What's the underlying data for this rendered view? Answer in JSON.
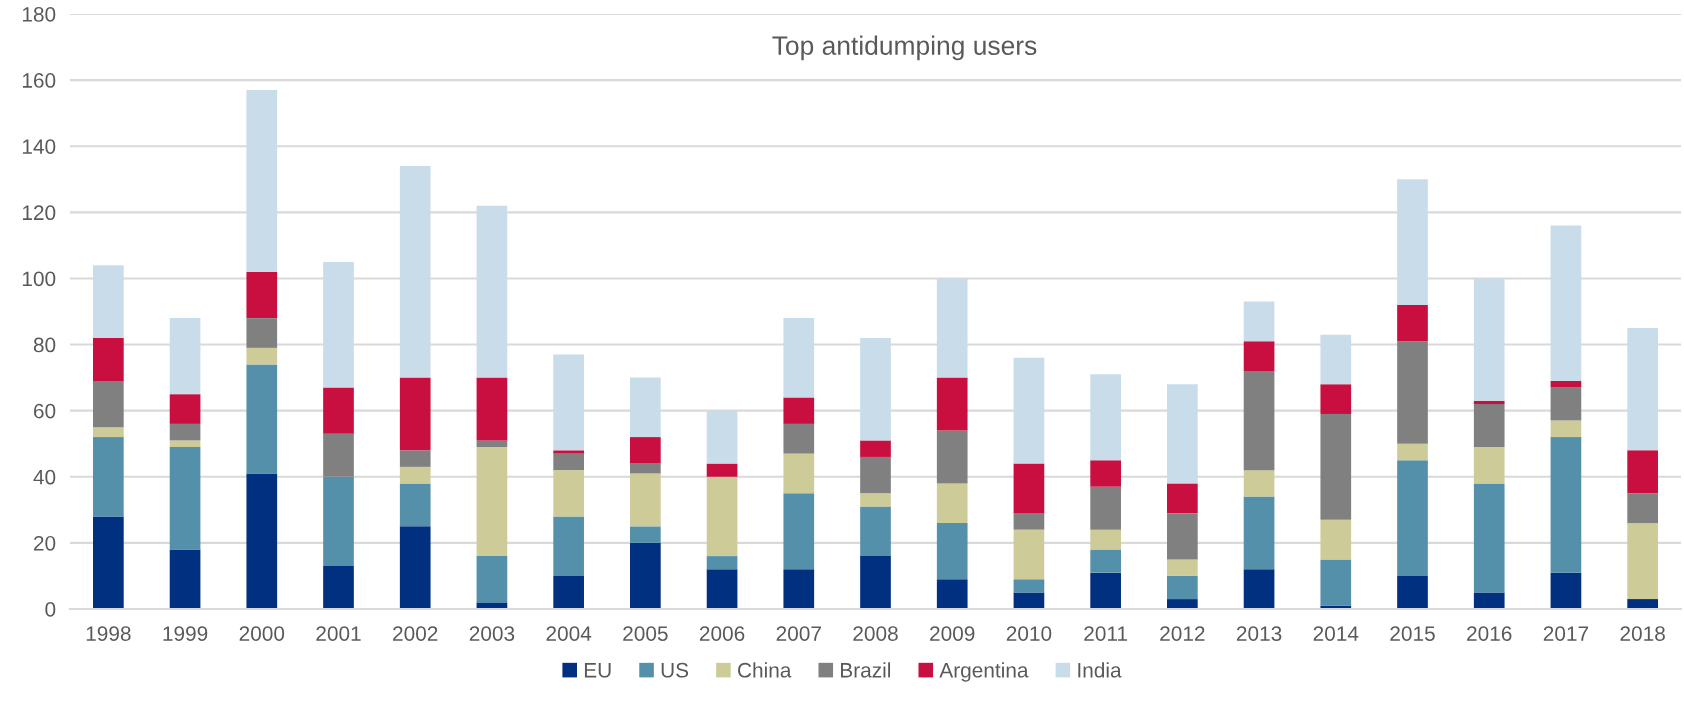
{
  "chart_data": {
    "type": "bar",
    "stacked": true,
    "title": "Top antidumping users",
    "categories": [
      "1998",
      "1999",
      "2000",
      "2001",
      "2002",
      "2003",
      "2004",
      "2005",
      "2006",
      "2007",
      "2008",
      "2009",
      "2010",
      "2011",
      "2012",
      "2013",
      "2014",
      "2015",
      "2016",
      "2017",
      "2018"
    ],
    "series": [
      {
        "name": "EU",
        "color": "#00307f",
        "values": [
          28,
          18,
          41,
          13,
          25,
          2,
          10,
          20,
          12,
          12,
          16,
          9,
          5,
          11,
          3,
          12,
          1,
          10,
          5,
          11,
          3
        ]
      },
      {
        "name": "US",
        "color": "#5590ab",
        "values": [
          24,
          31,
          33,
          27,
          13,
          14,
          18,
          5,
          4,
          23,
          15,
          17,
          4,
          7,
          7,
          22,
          14,
          35,
          33,
          41,
          0
        ]
      },
      {
        "name": "China",
        "color": "#cdcc99",
        "values": [
          3,
          2,
          5,
          0,
          5,
          33,
          14,
          16,
          24,
          12,
          4,
          12,
          15,
          6,
          5,
          8,
          12,
          5,
          11,
          5,
          23
        ]
      },
      {
        "name": "Brazil",
        "color": "#808080",
        "values": [
          14,
          5,
          9,
          13,
          5,
          2,
          5,
          3,
          0,
          9,
          11,
          16,
          5,
          13,
          14,
          30,
          32,
          31,
          13,
          10,
          9
        ]
      },
      {
        "name": "Argentina",
        "color": "#c80f3f",
        "values": [
          13,
          9,
          14,
          14,
          22,
          19,
          1,
          8,
          4,
          8,
          5,
          16,
          15,
          8,
          9,
          9,
          9,
          11,
          1,
          2,
          13
        ]
      },
      {
        "name": "India",
        "color": "#c9dcea",
        "values": [
          22,
          23,
          55,
          38,
          64,
          52,
          29,
          18,
          16,
          24,
          31,
          30,
          32,
          26,
          30,
          12,
          15,
          38,
          37,
          47,
          37
        ]
      }
    ],
    "ylim": [
      0,
      180
    ],
    "yticks": [
      0,
      20,
      40,
      60,
      80,
      100,
      120,
      140,
      160,
      180
    ],
    "grid": "y",
    "legend": "bottom"
  }
}
